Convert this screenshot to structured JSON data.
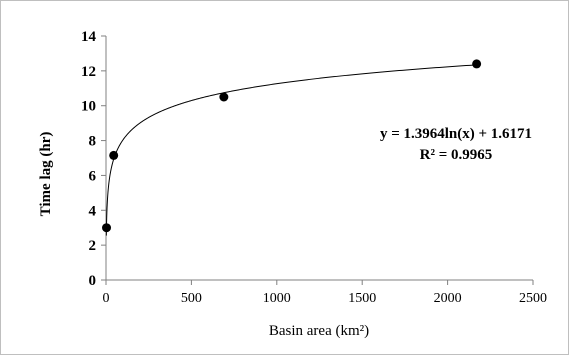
{
  "chart_data": {
    "type": "scatter",
    "xlabel": "Basin area (km²)",
    "ylabel": "Time lag (hr)",
    "xlim": [
      0,
      2500
    ],
    "ylim": [
      0,
      14
    ],
    "x_ticks": [
      "0",
      "500",
      "1000",
      "1500",
      "2000",
      "2500"
    ],
    "y_ticks": [
      "0",
      "2",
      "4",
      "6",
      "8",
      "10",
      "12",
      "14"
    ],
    "grid": false,
    "points": [
      {
        "x": 3,
        "y": 3.0
      },
      {
        "x": 45,
        "y": 7.15
      },
      {
        "x": 690,
        "y": 10.5
      },
      {
        "x": 2170,
        "y": 12.4
      }
    ],
    "trendline": {
      "type": "logarithmic",
      "a": 1.3964,
      "b": 1.6171,
      "equation": "y = 1.3964ln(x) + 1.6171",
      "r2": "R² = 0.9965"
    },
    "colors": {
      "marker": "#000000",
      "line": "#000000",
      "axis": "#808080"
    }
  }
}
